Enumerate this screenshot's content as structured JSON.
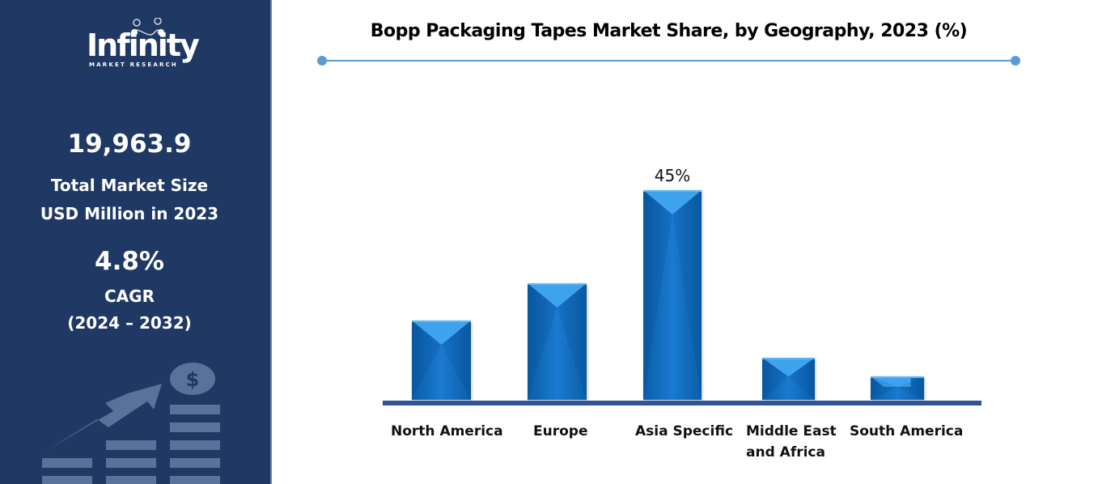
{
  "sidebar": {
    "logo": {
      "word": "Infinity",
      "subtitle": "MARKET RESEARCH"
    },
    "market_size": {
      "value": "19,963.9",
      "label_line1": "Total Market Size",
      "label_line2": "USD Million in 2023"
    },
    "cagr": {
      "value": "4.8%",
      "label_line1": "CAGR",
      "label_line2": "(2024 – 2032)"
    },
    "decoration_icon": "growth-chart-dollar-icon"
  },
  "colors": {
    "sidebar_bg": "#1f3864",
    "bar_fill": "#0e6cc0",
    "baseline": "#2f5597",
    "title_rule": "#5b9bd5"
  },
  "chart_data": {
    "type": "bar",
    "title": "Bopp Packaging Tapes Market Share, by Geography, 2023 (%)",
    "xlabel": "",
    "ylabel": "",
    "categories": [
      "North America",
      "Europe",
      "Asia Specific",
      "Middle East\nand Africa",
      "South America"
    ],
    "values": [
      17,
      25,
      45,
      9,
      5
    ],
    "data_labels": [
      "",
      "",
      "45%",
      "",
      ""
    ],
    "ylim": [
      0,
      50
    ],
    "grid": false,
    "legend": "none"
  }
}
